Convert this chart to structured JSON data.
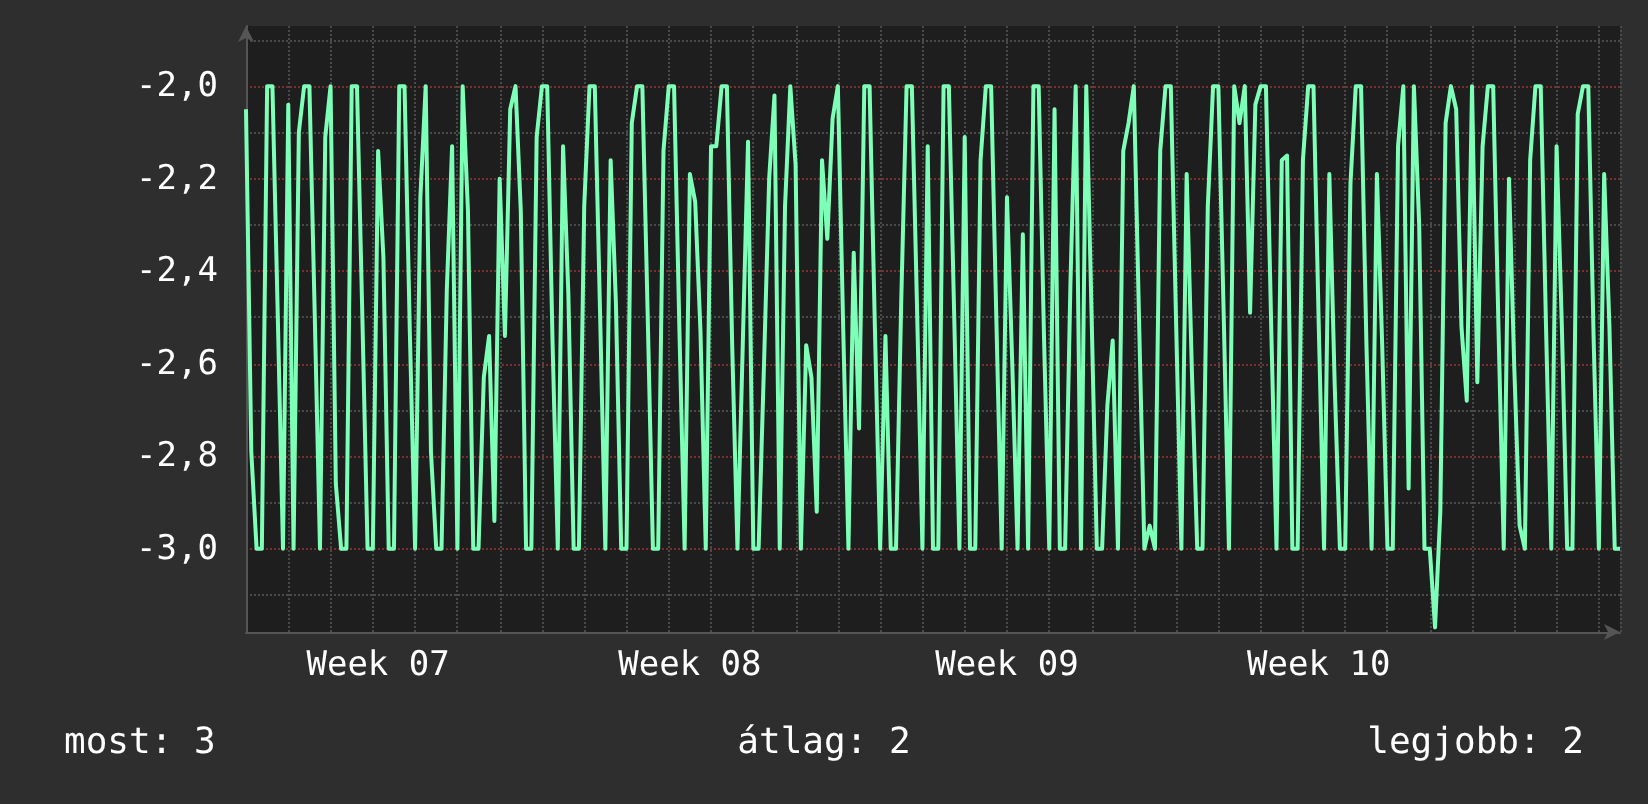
{
  "chart_data": {
    "type": "line",
    "categories": [
      null,
      null,
      null,
      null,
      null,
      null,
      null,
      null,
      null,
      null,
      null,
      null,
      null,
      null,
      null,
      null,
      null,
      null,
      null,
      null,
      null,
      null,
      null,
      null,
      null,
      "Week 07",
      null,
      null,
      null,
      null,
      null,
      null,
      null,
      null,
      null,
      null,
      null,
      null,
      null,
      null,
      null,
      null,
      null,
      null,
      null,
      null,
      null,
      null,
      null,
      null,
      null,
      null,
      null,
      null,
      null,
      null,
      null,
      null,
      null,
      null,
      null,
      null,
      null,
      null,
      null,
      null,
      null,
      null,
      null,
      null,
      null,
      null,
      null,
      null,
      null,
      null,
      null,
      null,
      null,
      null,
      null,
      null,
      null,
      null,
      "Week 08",
      null,
      null,
      null,
      null,
      null,
      null,
      null,
      null,
      null,
      null,
      null,
      null,
      null,
      null,
      null,
      null,
      null,
      null,
      null,
      null,
      null,
      null,
      null,
      null,
      null,
      null,
      null,
      null,
      null,
      null,
      null,
      null,
      null,
      null,
      null,
      null,
      null,
      null,
      null,
      null,
      null,
      null,
      null,
      null,
      null,
      null,
      null,
      null,
      null,
      null,
      null,
      null,
      null,
      null,
      null,
      null,
      null,
      null,
      null,
      "Week 09",
      null,
      null,
      null,
      null,
      null,
      null,
      null,
      null,
      null,
      null,
      null,
      null,
      null,
      null,
      null,
      null,
      null,
      null,
      null,
      null,
      null,
      null,
      null,
      null,
      null,
      null,
      null,
      null,
      null,
      null,
      null,
      null,
      null,
      null,
      null,
      null,
      null,
      null,
      null,
      null,
      null,
      null,
      null,
      null,
      null,
      null,
      null,
      null,
      null,
      null,
      null,
      null,
      null,
      null,
      null,
      null,
      null,
      null,
      "Week 10",
      null,
      null,
      null,
      null,
      null,
      null,
      null,
      null,
      null,
      null,
      null,
      null,
      null,
      null,
      null,
      null,
      null,
      null,
      null,
      null,
      null,
      null,
      null,
      null,
      null,
      null,
      null,
      null,
      null,
      null,
      null,
      null,
      null,
      null,
      null,
      null,
      null,
      null,
      null,
      null,
      null,
      null,
      null,
      null,
      null,
      null,
      null,
      null,
      null,
      null,
      null,
      null,
      null,
      null,
      null,
      null,
      null
    ],
    "ylim": [
      -3.18,
      -1.87
    ],
    "yticks": [
      {
        "value": -2.0,
        "label": "-2,0"
      },
      {
        "value": -2.2,
        "label": "-2,2"
      },
      {
        "value": -2.4,
        "label": "-2,4"
      },
      {
        "value": -2.6,
        "label": "-2,6"
      },
      {
        "value": -2.8,
        "label": "-2,8"
      },
      {
        "value": -3.0,
        "label": "-3,0"
      },
      {
        "value": -1.9,
        "label": null
      },
      {
        "value": -2.1,
        "label": null
      },
      {
        "value": -2.3,
        "label": null
      },
      {
        "value": -2.5,
        "label": null
      },
      {
        "value": -2.7,
        "label": null
      },
      {
        "value": -2.9,
        "label": null
      },
      {
        "value": -3.1,
        "label": null
      }
    ],
    "grid": true,
    "marker": "none",
    "line_style": "solid",
    "annotations": [
      "most: 3",
      "átlag: 2",
      "legjobb: 2"
    ],
    "series": [
      {
        "color": "#7dffb8",
        "values": [
          -2.05,
          -2.79,
          -3,
          -3,
          -2,
          -2,
          -2.49,
          -3,
          -2.04,
          -3,
          -2.1,
          -2,
          -2,
          -2.49,
          -3,
          -2.11,
          -2,
          -2.86,
          -3,
          -3,
          -2,
          -2,
          -2.49,
          -3,
          -3,
          -2.14,
          -2.37,
          -3,
          -3,
          -2,
          -2,
          -2.53,
          -3,
          -2.24,
          -2,
          -2.79,
          -3,
          -3,
          -2.44,
          -2.13,
          -3,
          -2,
          -2.27,
          -3,
          -3,
          -2.63,
          -2.54,
          -2.94,
          -2.2,
          -2.54,
          -2.05,
          -2,
          -2.27,
          -3,
          -3,
          -2.11,
          -2,
          -2,
          -2.55,
          -3,
          -2.13,
          -2.45,
          -3,
          -3,
          -2.26,
          -2,
          -2,
          -2.49,
          -3,
          -2.16,
          -2.47,
          -3,
          -3,
          -2.08,
          -2,
          -2,
          -2.49,
          -3,
          -3,
          -2.14,
          -2,
          -2,
          -2.52,
          -3,
          -2.19,
          -2.25,
          -2.53,
          -3,
          -2.13,
          -2.13,
          -2,
          -2,
          -2.56,
          -3,
          -2.56,
          -2.12,
          -3,
          -3,
          -2.61,
          -2.2,
          -2.02,
          -3,
          -2.26,
          -2,
          -2.17,
          -3,
          -2.56,
          -2.63,
          -2.92,
          -2.16,
          -2.33,
          -2.07,
          -2,
          -2.52,
          -3,
          -2.36,
          -2.74,
          -2,
          -2,
          -2.52,
          -3,
          -2.54,
          -3,
          -3,
          -2.46,
          -2,
          -2,
          -2.49,
          -3,
          -2.13,
          -3,
          -3,
          -2,
          -2,
          -2.49,
          -3,
          -2.11,
          -3,
          -3,
          -2.16,
          -2,
          -2,
          -2.51,
          -3,
          -2.24,
          -2.6,
          -3,
          -2.32,
          -3,
          -2,
          -2,
          -2.54,
          -3,
          -2.05,
          -3,
          -3,
          -2.43,
          -2,
          -3,
          -2,
          -2.49,
          -3,
          -3,
          -2.69,
          -2.55,
          -3,
          -2.14,
          -2.08,
          -2,
          -2.51,
          -3,
          -2.95,
          -3,
          -2.14,
          -2,
          -2,
          -2.51,
          -3,
          -2.19,
          -2.62,
          -3,
          -3,
          -2.26,
          -2,
          -2,
          -2.49,
          -3,
          -2,
          -2.08,
          -2,
          -2.49,
          -2.04,
          -2,
          -2,
          -2.52,
          -3,
          -2.16,
          -2.15,
          -3,
          -3,
          -2.16,
          -2,
          -2,
          -2.52,
          -3,
          -2.19,
          -2.64,
          -3,
          -3,
          -2.21,
          -2,
          -2,
          -2.55,
          -3,
          -2.19,
          -2.56,
          -3,
          -3,
          -2.13,
          -2,
          -2.87,
          -2,
          -2.3,
          -3,
          -3,
          -3.17,
          -2.92,
          -2.08,
          -2,
          -2.05,
          -2.52,
          -2.68,
          -2,
          -2.64,
          -2.13,
          -2,
          -2,
          -2.52,
          -3,
          -2.2,
          -2.61,
          -2.95,
          -3,
          -2.16,
          -2,
          -2,
          -2.52,
          -3,
          -2.13,
          -2.52,
          -3,
          -3,
          -2.06,
          -2,
          -2,
          -2.54,
          -3,
          -2.19,
          -2.52,
          -3,
          -3
        ]
      }
    ]
  }
}
